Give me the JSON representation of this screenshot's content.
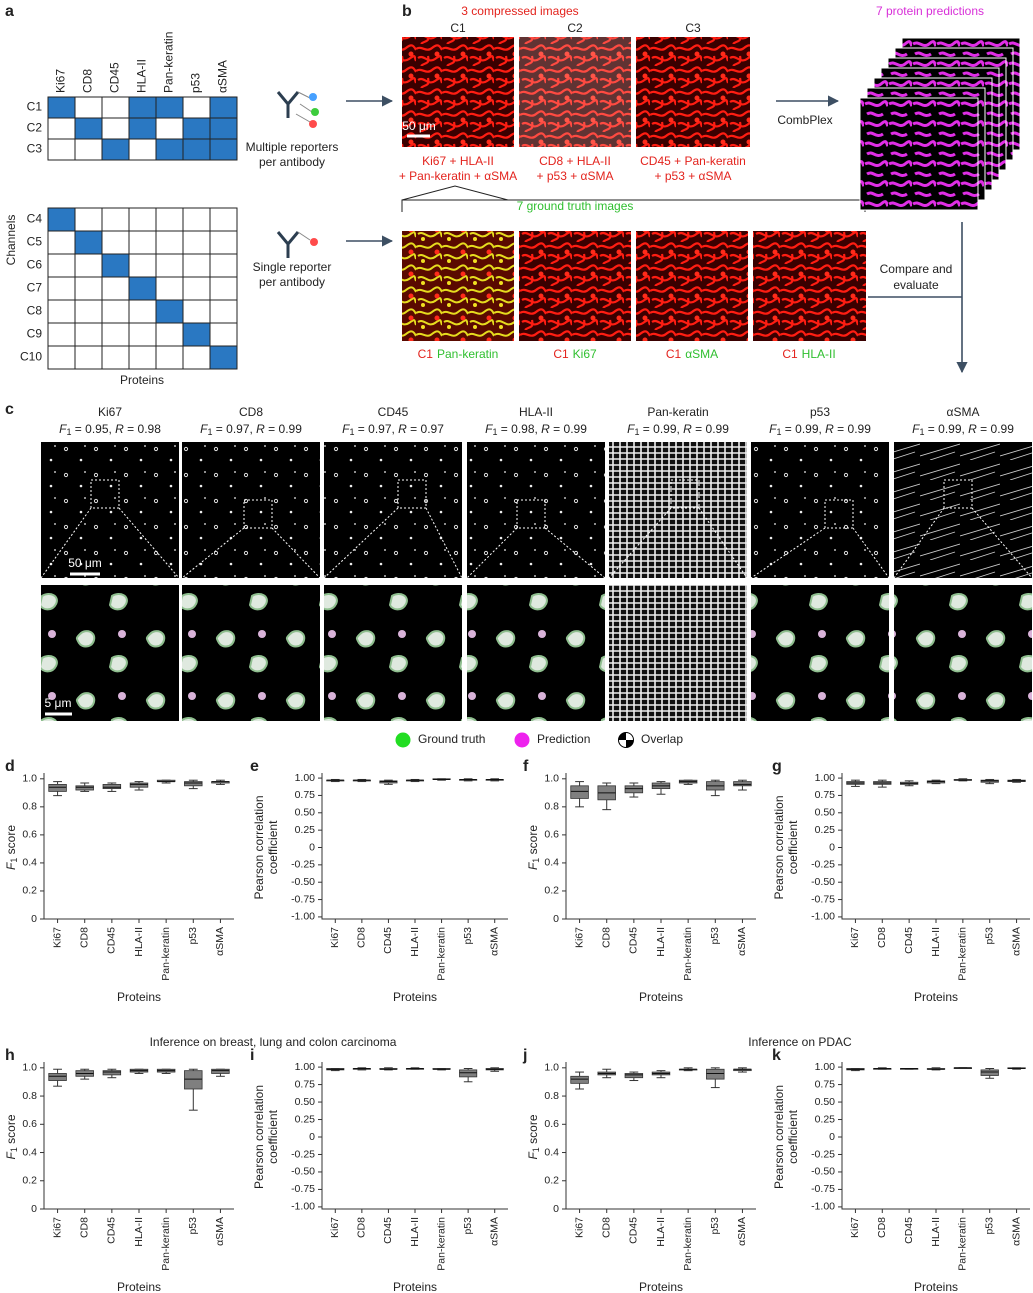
{
  "panel_a": {
    "label": "a",
    "columns": [
      "Ki67",
      "CD8",
      "CD45",
      "HLA-II",
      "Pan-keratin",
      "p53",
      "αSMA"
    ],
    "fill_color": "#2a78c2",
    "top_matrix": {
      "rows": [
        "C1",
        "C2",
        "C3"
      ],
      "cells": [
        [
          1,
          0,
          0,
          1,
          1,
          0,
          1
        ],
        [
          0,
          1,
          0,
          1,
          0,
          1,
          1
        ],
        [
          0,
          0,
          1,
          0,
          1,
          1,
          1
        ]
      ]
    },
    "bottom_matrix": {
      "rows": [
        "C4",
        "C5",
        "C6",
        "C7",
        "C8",
        "C9",
        "C10"
      ],
      "cells": [
        [
          1,
          0,
          0,
          0,
          0,
          0,
          0
        ],
        [
          0,
          1,
          0,
          0,
          0,
          0,
          0
        ],
        [
          0,
          0,
          1,
          0,
          0,
          0,
          0
        ],
        [
          0,
          0,
          0,
          1,
          0,
          0,
          0
        ],
        [
          0,
          0,
          0,
          0,
          1,
          0,
          0
        ],
        [
          0,
          0,
          0,
          0,
          0,
          1,
          0
        ],
        [
          0,
          0,
          0,
          0,
          0,
          0,
          1
        ]
      ]
    },
    "y_axis_label": "Channels",
    "x_axis_label": "Proteins",
    "multiple_reporters": [
      "Multiple reporters",
      "per antibody"
    ],
    "single_reporter": [
      "Single reporter",
      "per antibody"
    ]
  },
  "panel_b": {
    "label": "b",
    "compressed_title": "3 compressed images",
    "channels": [
      "C1",
      "C2",
      "C3"
    ],
    "scale_bar": "50 μm",
    "compressed_captions": [
      [
        "Ki67 + HLA-II",
        "+ Pan-keratin + αSMA"
      ],
      [
        "CD8 + HLA-II",
        "+ p53 + αSMA"
      ],
      [
        "CD45 + Pan-keratin",
        "+ p53 + αSMA"
      ]
    ],
    "predictions_title": "7 protein predictions",
    "method": "CombPlex",
    "ground_truth_title": "7 ground truth images",
    "ground_truth_captions": [
      {
        "channel": "C1",
        "protein": "Pan-keratin"
      },
      {
        "channel": "C1",
        "protein": "Ki67"
      },
      {
        "channel": "C1",
        "protein": "αSMA"
      },
      {
        "channel": "C1",
        "protein": "HLA-II"
      }
    ],
    "compare": [
      "Compare and",
      "evaluate"
    ]
  },
  "panel_c": {
    "label": "c",
    "proteins": [
      "Ki67",
      "CD8",
      "CD45",
      "HLA-II",
      "Pan-keratin",
      "p53",
      "αSMA"
    ],
    "f_symbol": "F",
    "f_subscript": "1",
    "r_symbol": "R",
    "equals": " = ",
    "separator": ", ",
    "f1": [
      0.95,
      0.97,
      0.97,
      0.98,
      0.99,
      0.99,
      0.99
    ],
    "r": [
      0.98,
      0.99,
      0.97,
      0.99,
      0.99,
      0.99,
      0.99
    ],
    "scale_top": "50 μm",
    "scale_bottom": "5 μm",
    "legend": [
      {
        "name": "Ground truth",
        "color": "#22dd22"
      },
      {
        "name": "Prediction",
        "color": "#ee22ee"
      },
      {
        "name": "Overlap",
        "color": "#ffffff"
      }
    ]
  },
  "inference_titles": [
    "Inference on breast, lung and colon carcinoma",
    "Inference on PDAC"
  ],
  "chart_data": [
    {
      "type": "box",
      "label": "d",
      "ylabel": {
        "symbol": "F",
        "subscript": "1",
        "text": " score"
      },
      "xlabel": "Proteins",
      "color": "#7f7f7f",
      "categories": [
        "Ki67",
        "CD8",
        "CD45",
        "HLA-II",
        "Pan-keratin",
        "p53",
        "αSMA"
      ],
      "whisker_low": [
        0.88,
        0.91,
        0.91,
        0.92,
        0.97,
        0.93,
        0.96
      ],
      "q1": [
        0.91,
        0.92,
        0.93,
        0.94,
        0.98,
        0.95,
        0.97
      ],
      "median": [
        0.94,
        0.94,
        0.94,
        0.96,
        0.98,
        0.97,
        0.98
      ],
      "q3": [
        0.96,
        0.95,
        0.96,
        0.97,
        0.99,
        0.98,
        0.98
      ],
      "whisker_high": [
        0.98,
        0.97,
        0.97,
        0.98,
        0.99,
        0.99,
        0.99
      ],
      "ylim": [
        0,
        1.02
      ],
      "yticks": [
        0,
        0.2,
        0.4,
        0.6,
        0.8,
        {
          "value": 1,
          "label": "1.0"
        }
      ]
    },
    {
      "type": "box",
      "label": "e",
      "ylabel": [
        "Pearson correlation",
        "coefficient"
      ],
      "xlabel": "Proteins",
      "color": "#7f7f7f",
      "categories": [
        "Ki67",
        "CD8",
        "CD45",
        "HLA-II",
        "Pan-keratin",
        "p53",
        "αSMA"
      ],
      "whisker_low": [
        0.95,
        0.95,
        0.91,
        0.95,
        0.97,
        0.96,
        0.96
      ],
      "q1": [
        0.96,
        0.96,
        0.93,
        0.96,
        0.98,
        0.97,
        0.97
      ],
      "median": [
        0.97,
        0.97,
        0.95,
        0.97,
        0.98,
        0.98,
        0.98
      ],
      "q3": [
        0.97,
        0.97,
        0.96,
        0.97,
        0.99,
        0.98,
        0.98
      ],
      "whisker_high": [
        0.98,
        0.98,
        0.97,
        0.98,
        0.99,
        0.99,
        0.99
      ],
      "ylim": [
        -1.03,
        1.03
      ],
      "yticks": [
        {
          "value": 1,
          "label": "1.00"
        },
        0.75,
        {
          "value": 0.5,
          "label": "0.50"
        },
        0.25,
        0,
        -0.25,
        {
          "value": -0.5,
          "label": "-0.50"
        },
        -0.75,
        {
          "value": -1,
          "label": "-1.00"
        }
      ]
    },
    {
      "type": "box",
      "label": "f",
      "ylabel": {
        "symbol": "F",
        "subscript": "1",
        "text": " score"
      },
      "xlabel": "Proteins",
      "color": "#7f7f7f",
      "categories": [
        "Ki67",
        "CD8",
        "CD45",
        "HLA-II",
        "Pan-keratin",
        "p53",
        "αSMA"
      ],
      "whisker_low": [
        0.8,
        0.78,
        0.87,
        0.89,
        0.96,
        0.88,
        0.92
      ],
      "q1": [
        0.86,
        0.85,
        0.9,
        0.93,
        0.97,
        0.92,
        0.95
      ],
      "median": [
        0.91,
        0.9,
        0.93,
        0.95,
        0.98,
        0.95,
        0.96
      ],
      "q3": [
        0.95,
        0.95,
        0.95,
        0.97,
        0.99,
        0.98,
        0.98
      ],
      "whisker_high": [
        0.98,
        0.97,
        0.97,
        0.98,
        0.99,
        0.99,
        0.99
      ],
      "ylim": [
        0,
        1.02
      ],
      "yticks": [
        0,
        0.2,
        0.4,
        0.6,
        0.8,
        {
          "value": 1,
          "label": "1.0"
        }
      ]
    },
    {
      "type": "box",
      "label": "g",
      "ylabel": [
        "Pearson correlation",
        "coefficient"
      ],
      "xlabel": "Proteins",
      "color": "#7f7f7f",
      "categories": [
        "Ki67",
        "CD8",
        "CD45",
        "HLA-II",
        "Pan-keratin",
        "p53",
        "αSMA"
      ],
      "whisker_low": [
        0.88,
        0.87,
        0.89,
        0.92,
        0.96,
        0.92,
        0.94
      ],
      "q1": [
        0.91,
        0.91,
        0.91,
        0.93,
        0.97,
        0.94,
        0.95
      ],
      "median": [
        0.93,
        0.93,
        0.92,
        0.95,
        0.97,
        0.96,
        0.96
      ],
      "q3": [
        0.95,
        0.95,
        0.94,
        0.96,
        0.98,
        0.97,
        0.97
      ],
      "whisker_high": [
        0.97,
        0.97,
        0.96,
        0.97,
        0.99,
        0.98,
        0.98
      ],
      "ylim": [
        -1.03,
        1.03
      ],
      "yticks": [
        {
          "value": 1,
          "label": "1.00"
        },
        0.75,
        {
          "value": 0.5,
          "label": "0.50"
        },
        0.25,
        0,
        -0.25,
        {
          "value": -0.5,
          "label": "-0.50"
        },
        -0.75,
        {
          "value": -1,
          "label": "-1.00"
        }
      ]
    },
    {
      "type": "box",
      "label": "h",
      "ylabel": {
        "symbol": "F",
        "subscript": "1",
        "text": " score"
      },
      "xlabel": "Proteins",
      "color": "#7f7f7f",
      "categories": [
        "Ki67",
        "CD8",
        "CD45",
        "HLA-II",
        "Pan-keratin",
        "p53",
        "αSMA"
      ],
      "whisker_low": [
        0.87,
        0.92,
        0.93,
        0.96,
        0.96,
        0.7,
        0.94
      ],
      "q1": [
        0.91,
        0.94,
        0.95,
        0.97,
        0.97,
        0.85,
        0.96
      ],
      "median": [
        0.94,
        0.96,
        0.97,
        0.98,
        0.98,
        0.92,
        0.98
      ],
      "q3": [
        0.96,
        0.98,
        0.98,
        0.99,
        0.99,
        0.98,
        0.99
      ],
      "whisker_high": [
        0.99,
        0.99,
        0.99,
        0.99,
        0.99,
        0.99,
        0.99
      ],
      "ylim": [
        0,
        1.02
      ],
      "yticks": [
        0,
        0.2,
        0.4,
        0.6,
        0.8,
        {
          "value": 1,
          "label": "1.0"
        }
      ]
    },
    {
      "type": "box",
      "label": "i",
      "ylabel": [
        "Pearson correlation",
        "coefficient"
      ],
      "xlabel": "Proteins",
      "color": "#7f7f7f",
      "categories": [
        "Ki67",
        "CD8",
        "CD45",
        "HLA-II",
        "Pan-keratin",
        "p53",
        "αSMA"
      ],
      "whisker_low": [
        0.95,
        0.96,
        0.96,
        0.97,
        0.96,
        0.79,
        0.94
      ],
      "q1": [
        0.96,
        0.97,
        0.97,
        0.97,
        0.97,
        0.86,
        0.96
      ],
      "median": [
        0.97,
        0.98,
        0.97,
        0.98,
        0.97,
        0.92,
        0.97
      ],
      "q3": [
        0.98,
        0.98,
        0.98,
        0.98,
        0.98,
        0.96,
        0.98
      ],
      "whisker_high": [
        0.98,
        0.99,
        0.99,
        0.99,
        0.98,
        0.98,
        0.99
      ],
      "ylim": [
        -1.03,
        1.03
      ],
      "yticks": [
        {
          "value": 1,
          "label": "1.00"
        },
        0.75,
        {
          "value": 0.5,
          "label": "0.50"
        },
        0.25,
        0,
        -0.25,
        {
          "value": -0.5,
          "label": "-0.50"
        },
        -0.75,
        {
          "value": -1,
          "label": "-1.00"
        }
      ]
    },
    {
      "type": "box",
      "label": "j",
      "ylabel": {
        "symbol": "F",
        "subscript": "1",
        "text": " score"
      },
      "xlabel": "Proteins",
      "color": "#7f7f7f",
      "categories": [
        "Ki67",
        "CD8",
        "CD45",
        "HLA-II",
        "Pan-keratin",
        "p53",
        "αSMA"
      ],
      "whisker_low": [
        0.85,
        0.93,
        0.91,
        0.93,
        0.98,
        0.86,
        0.97
      ],
      "q1": [
        0.89,
        0.95,
        0.93,
        0.95,
        0.99,
        0.92,
        0.98
      ],
      "median": [
        0.92,
        0.96,
        0.95,
        0.96,
        0.99,
        0.96,
        0.99
      ],
      "q3": [
        0.94,
        0.97,
        0.96,
        0.97,
        0.99,
        0.99,
        0.99
      ],
      "whisker_high": [
        0.97,
        0.99,
        0.97,
        0.98,
        1,
        1,
        1
      ],
      "ylim": [
        0,
        1.02
      ],
      "yticks": [
        0,
        0.2,
        0.4,
        0.6,
        0.8,
        {
          "value": 1,
          "label": "1.0"
        }
      ]
    },
    {
      "type": "box",
      "label": "k",
      "ylabel": [
        "Pearson correlation",
        "coefficient"
      ],
      "xlabel": "Proteins",
      "color": "#7f7f7f",
      "categories": [
        "Ki67",
        "CD8",
        "CD45",
        "HLA-II",
        "Pan-keratin",
        "p53",
        "αSMA"
      ],
      "whisker_low": [
        0.95,
        0.97,
        0.97,
        0.96,
        0.98,
        0.84,
        0.97
      ],
      "q1": [
        0.96,
        0.97,
        0.97,
        0.97,
        0.98,
        0.88,
        0.98
      ],
      "median": [
        0.97,
        0.98,
        0.98,
        0.97,
        0.99,
        0.93,
        0.98
      ],
      "q3": [
        0.98,
        0.98,
        0.98,
        0.98,
        0.99,
        0.96,
        0.99
      ],
      "whisker_high": [
        0.98,
        0.99,
        0.98,
        0.99,
        0.99,
        0.98,
        0.99
      ],
      "ylim": [
        -1.03,
        1.03
      ],
      "yticks": [
        {
          "value": 1,
          "label": "1.00"
        },
        0.75,
        {
          "value": 0.5,
          "label": "0.50"
        },
        0.25,
        0,
        -0.25,
        {
          "value": -0.5,
          "label": "-0.50"
        },
        -0.75,
        {
          "value": -1,
          "label": "-1.00"
        }
      ]
    }
  ]
}
